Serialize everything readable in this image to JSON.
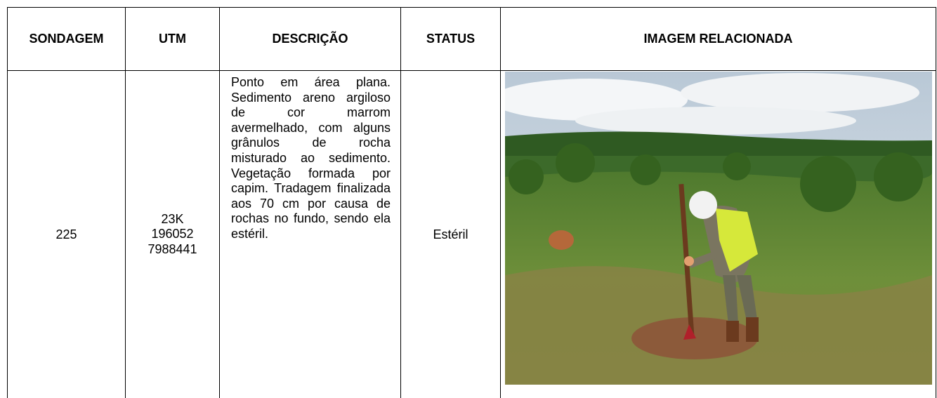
{
  "table": {
    "header": [
      "SONDAGEM",
      "UTM",
      "DESCRIÇÃO",
      "STATUS",
      "IMAGEM RELACIONADA"
    ],
    "rows": [
      {
        "sondagem": "225",
        "utm": [
          "23K",
          "196052",
          "7988441"
        ],
        "descricao": "Ponto em área plana. Sedimento areno argiloso de cor marrom avermelhado, com alguns grânulos de rocha misturado ao sedimento. Vegetação formada por capim. Tradagem finalizada aos 70 cm por causa de rochas no fundo, sendo ela estéril.",
        "status": "Estéril"
      }
    ]
  }
}
